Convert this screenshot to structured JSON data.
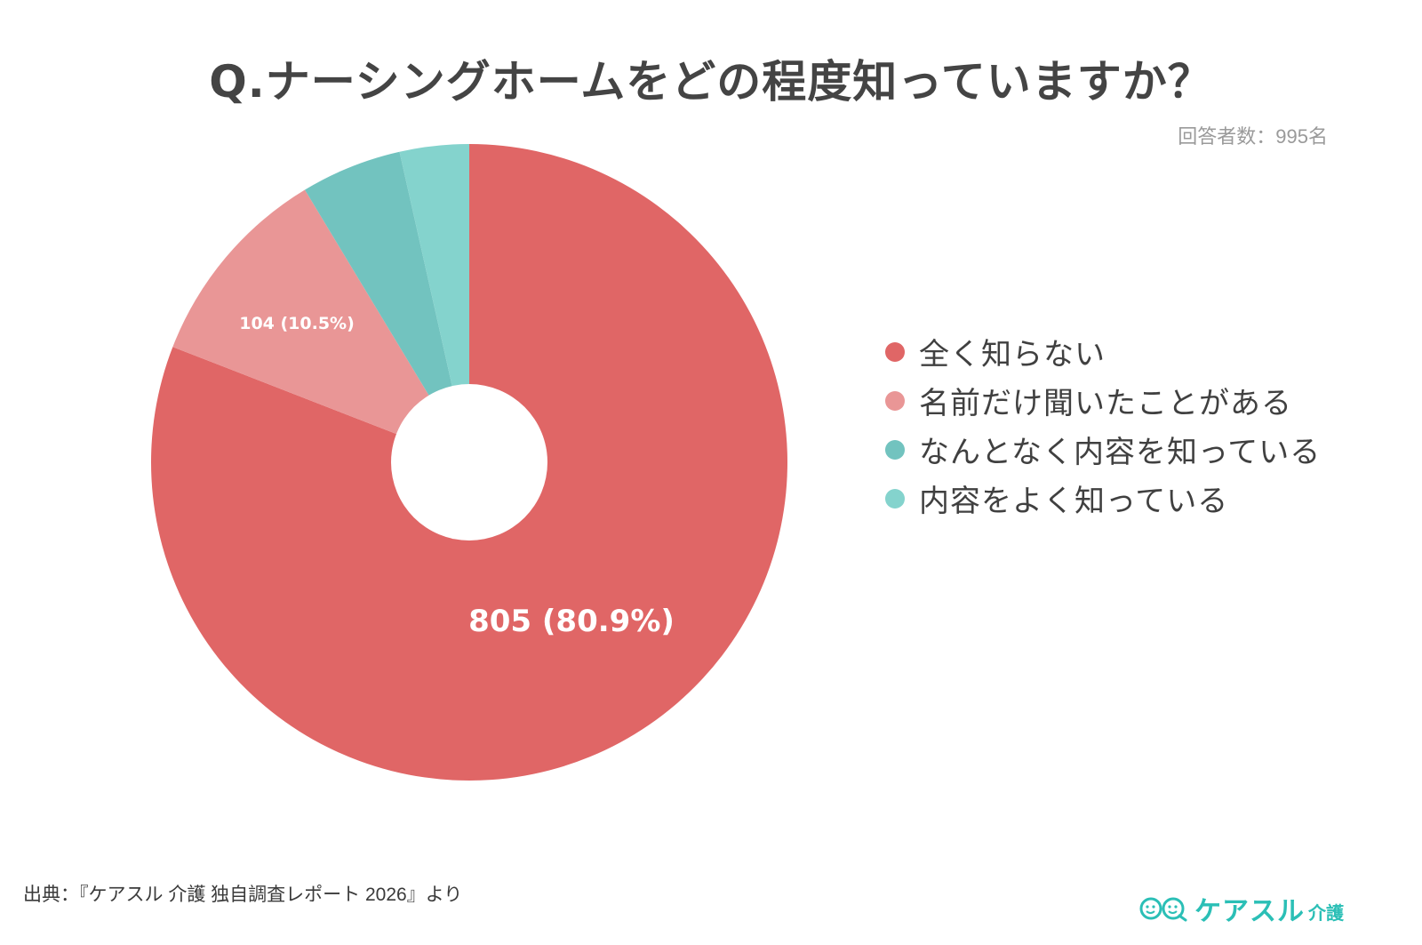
{
  "title": "Q.ナーシングホームをどの程度知っていますか？",
  "respondents_label": "回答者数：995名",
  "legend": [
    {
      "label": "全く知らない",
      "color": "#e06666"
    },
    {
      "label": "名前だけ聞いたことがある",
      "color": "#e99696"
    },
    {
      "label": "なんとなく内容を知っている",
      "color": "#72c3bf"
    },
    {
      "label": "内容をよく知っている",
      "color": "#84d3cd"
    }
  ],
  "slice_labels": {
    "s0": "805 (80.9%)",
    "s1": "104 (10.5%)"
  },
  "source": "出典：『ケアスル 介護 独自調査レポート 2026』より",
  "logo": {
    "text": "ケアスル",
    "sub": "介護",
    "color": "#2bbfb6"
  },
  "chart_data": {
    "type": "pie",
    "variant": "donut",
    "title": "Q.ナーシングホームをどの程度知っていますか？",
    "subtitle": "回答者数：995名",
    "total": 995,
    "categories": [
      "全く知らない",
      "名前だけ聞いたことがある",
      "なんとなく内容を知っている",
      "内容をよく知っている"
    ],
    "values": [
      805,
      104,
      51,
      35
    ],
    "percentages": [
      80.9,
      10.5,
      5.1,
      3.5
    ],
    "colors": [
      "#e06666",
      "#e99696",
      "#72c3bf",
      "#84d3cd"
    ],
    "data_labels": [
      "805 (80.9%)",
      "104 (10.5%)",
      "",
      ""
    ],
    "legend_position": "right",
    "start_angle": "12 o'clock, clockwise"
  }
}
